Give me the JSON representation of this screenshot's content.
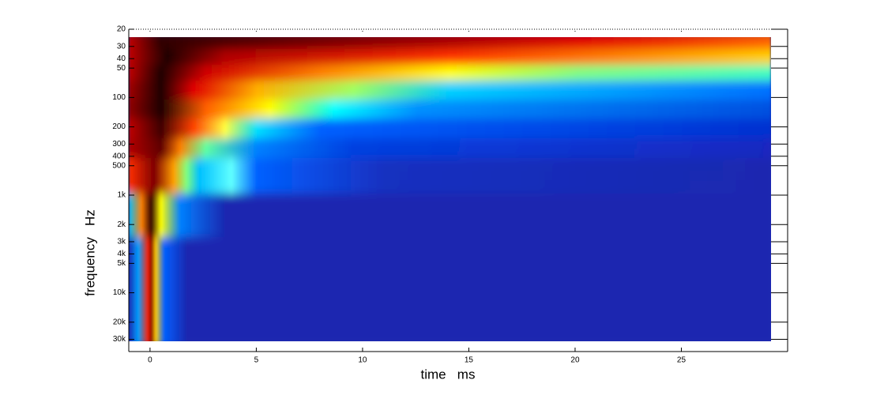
{
  "chart_data": {
    "type": "heatmap",
    "colormap": "jet",
    "xlabel": "time   ms",
    "ylabel": "frequency   Hz",
    "xlim": [
      -1,
      30
    ],
    "xticks": [
      0,
      5,
      10,
      15,
      20,
      25
    ],
    "ylim": [
      20,
      40000
    ],
    "y_scale": "log",
    "y_reversed": true,
    "yticks": [
      20,
      30,
      40,
      50,
      100,
      200,
      300,
      400,
      500,
      {
        "value": 1000,
        "label": "1k"
      },
      {
        "value": 2000,
        "label": "2k"
      },
      {
        "value": 3000,
        "label": "3k"
      },
      {
        "value": 4000,
        "label": "4k"
      },
      {
        "value": 5000,
        "label": "5k"
      },
      {
        "value": 10000,
        "label": "10k"
      },
      {
        "value": 20000,
        "label": "20k"
      },
      {
        "value": 30000,
        "label": "30k"
      }
    ]
  }
}
